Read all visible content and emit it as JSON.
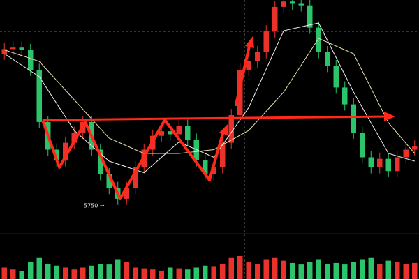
{
  "chart_data": {
    "type": "candlestick",
    "annotation": "5750 →",
    "up_color": "#e8322b",
    "down_color": "#2bc46a",
    "open": [
      5930,
      5936,
      5938,
      5935,
      5909,
      5841,
      5805,
      5791,
      5814,
      5827,
      5841,
      5805,
      5773,
      5755,
      5741,
      5755,
      5782,
      5805,
      5823,
      5829,
      5825,
      5836,
      5818,
      5791,
      5773,
      5782,
      5814,
      5850,
      5909,
      5920,
      5932,
      5959,
      5991,
      5998,
      5995,
      5993,
      5964,
      5932,
      5914,
      5886,
      5864,
      5827,
      5795,
      5782,
      5793,
      5777,
      5795,
      5805
    ],
    "high": [
      5944,
      5946,
      5946,
      5943,
      5917,
      5849,
      5813,
      5822,
      5835,
      5849,
      5849,
      5813,
      5781,
      5763,
      5763,
      5790,
      5813,
      5831,
      5837,
      5837,
      5844,
      5844,
      5826,
      5799,
      5790,
      5822,
      5858,
      5917,
      5928,
      5940,
      5967,
      5999,
      6006,
      6006,
      6003,
      6001,
      5972,
      5940,
      5922,
      5894,
      5872,
      5835,
      5803,
      5801,
      5801,
      5803,
      5813,
      5817
    ],
    "low": [
      5922,
      5928,
      5927,
      5901,
      5833,
      5797,
      5783,
      5783,
      5806,
      5819,
      5797,
      5765,
      5747,
      5733,
      5733,
      5747,
      5774,
      5797,
      5815,
      5817,
      5817,
      5810,
      5783,
      5765,
      5765,
      5774,
      5806,
      5842,
      5901,
      5912,
      5924,
      5951,
      5983,
      5987,
      5985,
      5956,
      5924,
      5906,
      5878,
      5856,
      5819,
      5787,
      5774,
      5774,
      5769,
      5769,
      5787,
      5797
    ],
    "close": [
      5936,
      5938,
      5935,
      5909,
      5841,
      5805,
      5791,
      5814,
      5827,
      5841,
      5805,
      5773,
      5755,
      5741,
      5755,
      5782,
      5805,
      5823,
      5829,
      5825,
      5836,
      5818,
      5791,
      5773,
      5782,
      5814,
      5850,
      5909,
      5920,
      5932,
      5959,
      5991,
      5998,
      5995,
      5993,
      5964,
      5932,
      5914,
      5886,
      5864,
      5827,
      5795,
      5782,
      5793,
      5777,
      5795,
      5805,
      5809
    ],
    "volume": [
      30,
      25,
      20,
      45,
      55,
      40,
      35,
      30,
      25,
      30,
      35,
      40,
      38,
      50,
      45,
      30,
      28,
      25,
      22,
      30,
      28,
      25,
      30,
      35,
      32,
      40,
      55,
      60,
      45,
      40,
      50,
      55,
      48,
      42,
      38,
      45,
      50,
      40,
      42,
      38,
      45,
      50,
      55,
      40,
      48,
      45,
      40,
      42
    ],
    "ylim": [
      5700,
      6000
    ],
    "volume_ylim": [
      0,
      100
    ],
    "moving_averages": [
      {
        "color": "#f2f2f2",
        "x": [
          0,
          4,
          8,
          12,
          16,
          20,
          24,
          28,
          32,
          36,
          40,
          44,
          47
        ],
        "values": [
          5930,
          5900,
          5830,
          5790,
          5775,
          5815,
          5795,
          5860,
          5960,
          5970,
          5880,
          5800,
          5790
        ]
      },
      {
        "color": "#e8e2a8",
        "x": [
          0,
          4,
          8,
          12,
          16,
          20,
          24,
          28,
          32,
          36,
          40,
          44,
          47
        ],
        "values": [
          5935,
          5920,
          5870,
          5820,
          5800,
          5800,
          5805,
          5830,
          5880,
          5950,
          5930,
          5840,
          5800
        ]
      }
    ]
  }
}
